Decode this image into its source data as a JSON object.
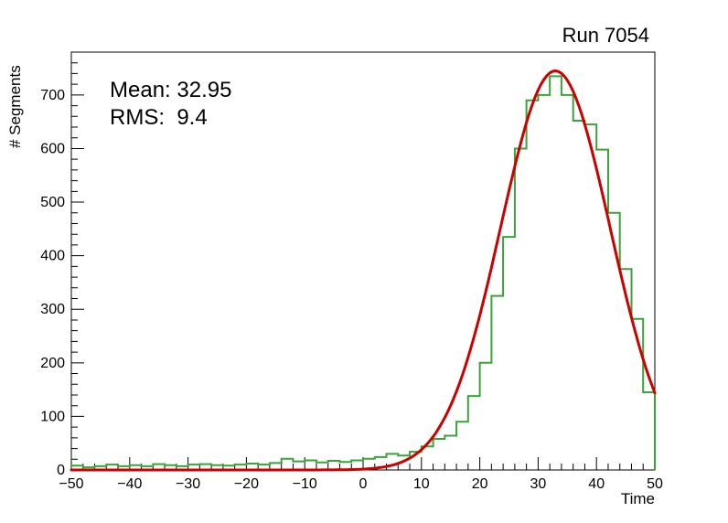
{
  "chart_data": {
    "type": "bar",
    "subtype": "histogram-with-gaussian-fit",
    "title": "Run 7054",
    "xlabel": "Time",
    "ylabel": "# Segments",
    "xlim": [
      -50,
      50
    ],
    "ylim": [
      0,
      780
    ],
    "x_major_ticks": [
      -50,
      -40,
      -30,
      -20,
      -10,
      0,
      10,
      20,
      30,
      40,
      50
    ],
    "y_major_ticks": [
      0,
      100,
      200,
      300,
      400,
      500,
      600,
      700
    ],
    "x_minor_step": 2,
    "y_minor_step": 20,
    "grid": false,
    "legend": "none",
    "bin_start": -50,
    "bin_width": 2,
    "bin_counts": [
      8,
      5,
      7,
      10,
      7,
      9,
      7,
      11,
      9,
      7,
      10,
      11,
      9,
      8,
      10,
      12,
      10,
      13,
      21,
      16,
      18,
      14,
      17,
      15,
      18,
      21,
      24,
      30,
      27,
      34,
      44,
      58,
      64,
      90,
      138,
      200,
      325,
      435,
      600,
      690,
      700,
      735,
      700,
      652,
      645,
      598,
      480,
      375,
      282,
      145
    ],
    "fit": {
      "type": "gaussian",
      "amplitude": 745,
      "mean": 32.95,
      "sigma": 9.4
    },
    "stats": {
      "mean_label": "Mean: 32.95",
      "rms_label": "RMS:  9.4"
    },
    "colors": {
      "histogram": "#3aa33a",
      "fit": "#cc0000",
      "frame": "#000000"
    }
  }
}
